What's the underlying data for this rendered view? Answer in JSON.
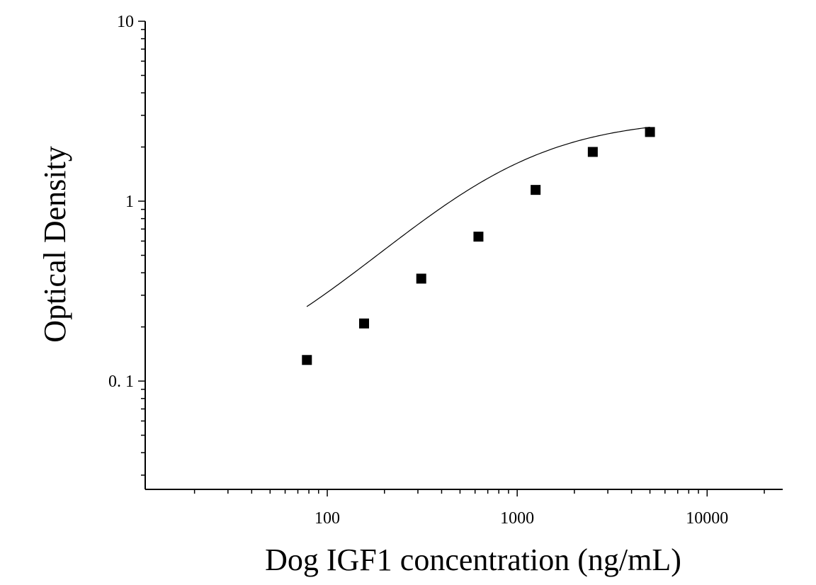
{
  "chart_data": {
    "type": "scatter",
    "title": "",
    "xlabel": "Dog IGF1 concentration (ng/mL)",
    "ylabel": "Optical Density",
    "x_scale": "log",
    "y_scale": "log",
    "xlim": [
      11,
      25000
    ],
    "ylim": [
      0.025,
      10
    ],
    "x_ticks": [
      {
        "value": 100,
        "label": "100"
      },
      {
        "value": 1000,
        "label": "1000"
      },
      {
        "value": 10000,
        "label": "10000"
      }
    ],
    "y_ticks": [
      {
        "value": 0.1,
        "label": "0. 1"
      },
      {
        "value": 1,
        "label": "1"
      },
      {
        "value": 10,
        "label": "10"
      }
    ],
    "grid": false,
    "legend": "none",
    "marker": "square",
    "colors": {
      "marker": "#000000",
      "axis": "#000000",
      "curve": "#000000"
    },
    "series": [
      {
        "x": [
          78.125,
          156.25,
          312.5,
          625,
          1250,
          2500,
          5000
        ],
        "y": [
          0.131,
          0.209,
          0.371,
          0.635,
          1.155,
          1.878,
          2.423
        ]
      }
    ],
    "fit_curve": {
      "type": "4PL",
      "x_start": 78,
      "x_end": 5000
    }
  }
}
